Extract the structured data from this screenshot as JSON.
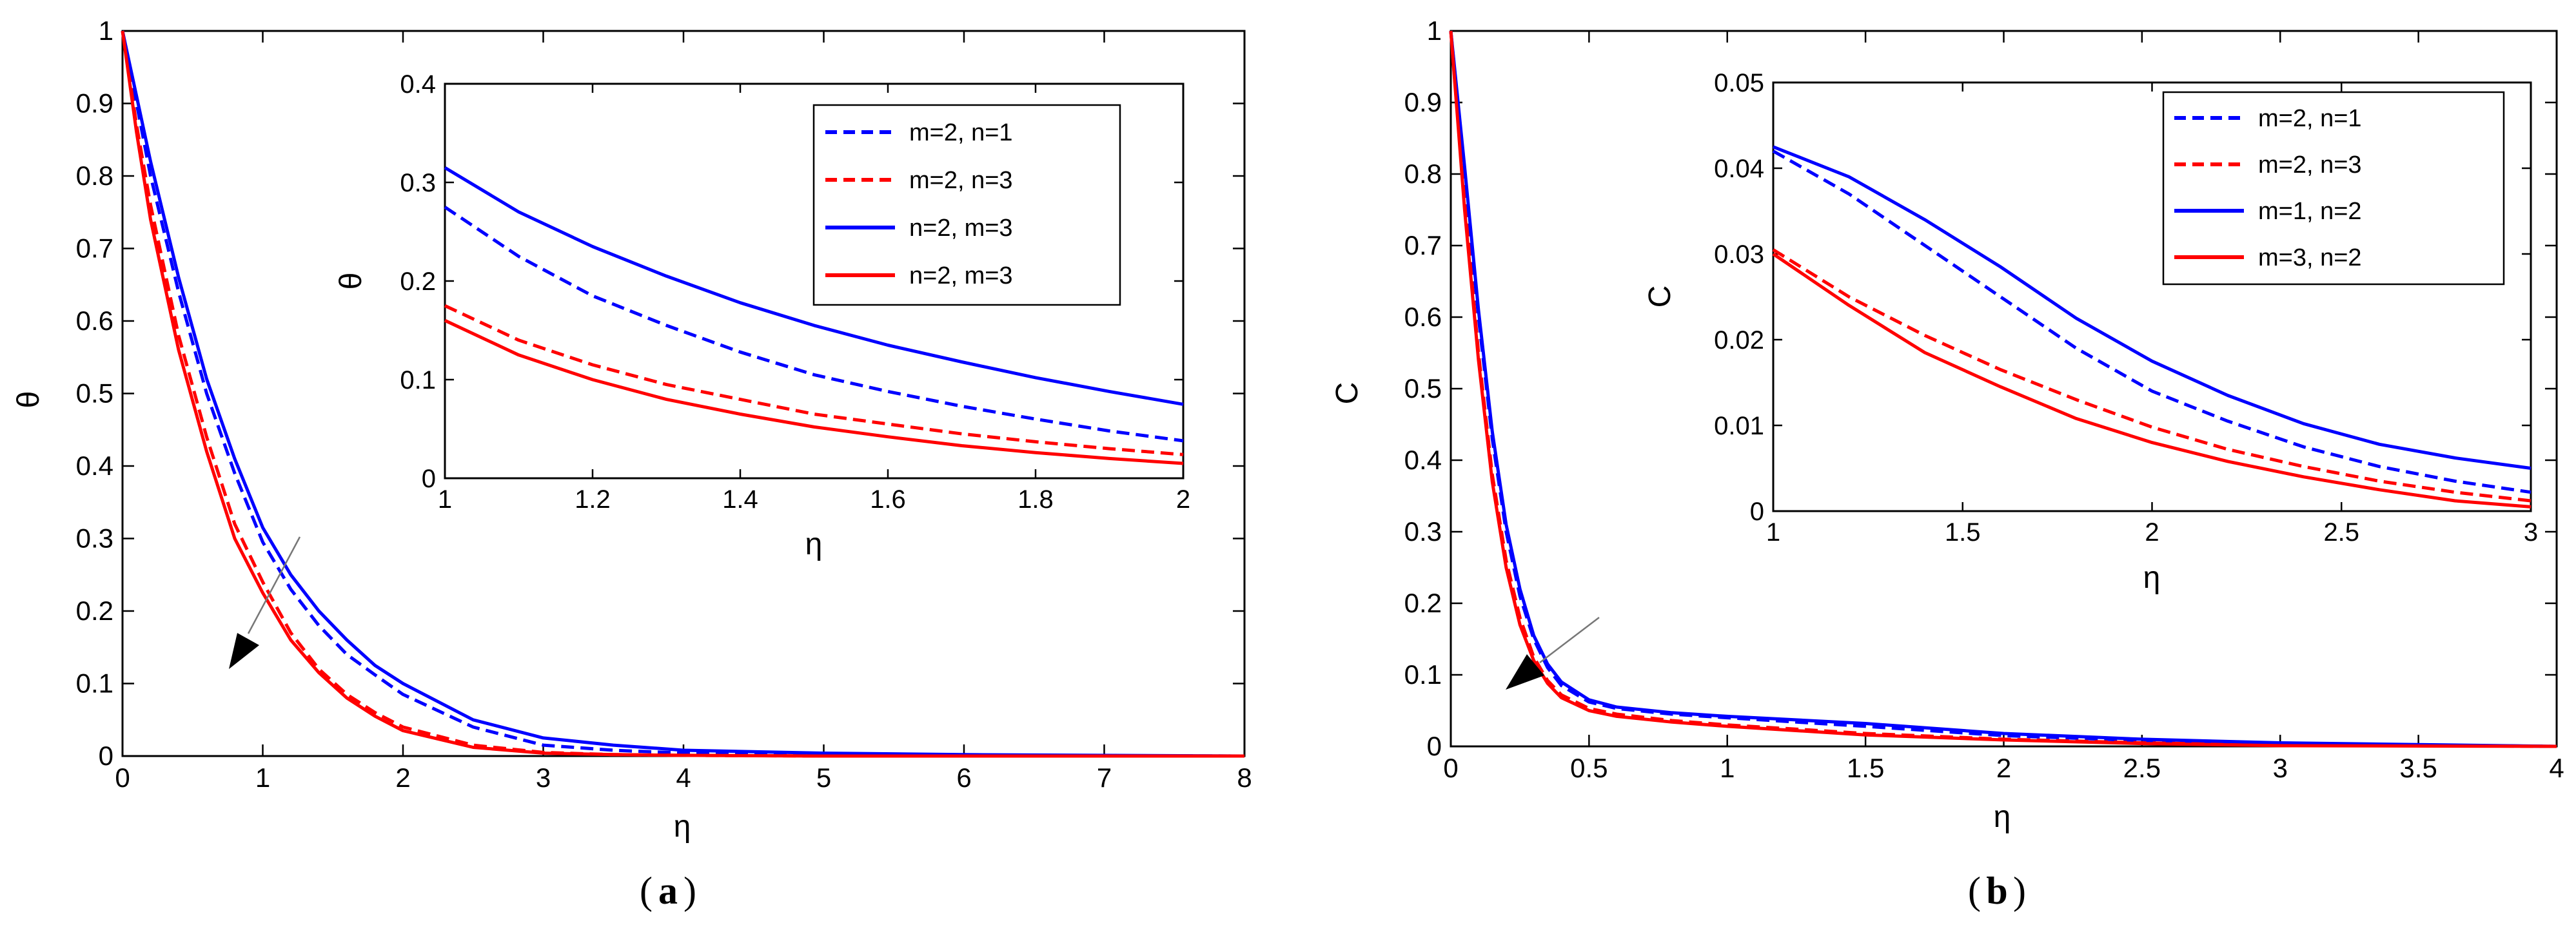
{
  "chart_data": [
    {
      "type": "line",
      "panel": "a",
      "caption_paren_open": "(",
      "caption_letter": "a",
      "caption_paren_close": ")",
      "xlabel": "η",
      "ylabel": "θ",
      "xlim": [
        0,
        8
      ],
      "ylim": [
        0,
        1
      ],
      "xticks": [
        0,
        1,
        2,
        3,
        4,
        5,
        6,
        7,
        8
      ],
      "yticks": [
        0,
        0.1,
        0.2,
        0.3,
        0.4,
        0.5,
        0.6,
        0.7,
        0.8,
        0.9,
        1
      ],
      "annotation": "arrow pointing toward lower curves",
      "series": [
        {
          "name": "m=2, n=1",
          "color": "#0000ff",
          "style": "dashed",
          "x": [
            0,
            0.1,
            0.2,
            0.4,
            0.6,
            0.8,
            1,
            1.2,
            1.4,
            1.6,
            1.8,
            2,
            2.5,
            3,
            3.5,
            4,
            5,
            6,
            8
          ],
          "y": [
            1,
            0.9,
            0.8,
            0.64,
            0.5,
            0.39,
            0.295,
            0.23,
            0.18,
            0.14,
            0.112,
            0.085,
            0.04,
            0.015,
            0.008,
            0.004,
            0.002,
            0.001,
            0
          ]
        },
        {
          "name": "m=2, n=3",
          "color": "#ff0000",
          "style": "dashed",
          "x": [
            0,
            0.1,
            0.2,
            0.4,
            0.6,
            0.8,
            1,
            1.2,
            1.4,
            1.6,
            1.8,
            2,
            2.5,
            3,
            3.5,
            4,
            5,
            6,
            8
          ],
          "y": [
            1,
            0.87,
            0.76,
            0.58,
            0.44,
            0.32,
            0.24,
            0.17,
            0.12,
            0.085,
            0.06,
            0.04,
            0.015,
            0.005,
            0.002,
            0.001,
            0,
            0,
            0
          ]
        },
        {
          "name": "n=2, m=3",
          "color": "#0000ff",
          "style": "solid",
          "x": [
            0,
            0.1,
            0.2,
            0.4,
            0.6,
            0.8,
            1,
            1.2,
            1.4,
            1.6,
            1.8,
            2,
            2.5,
            3,
            3.5,
            4,
            5,
            6,
            8
          ],
          "y": [
            1,
            0.91,
            0.82,
            0.66,
            0.52,
            0.41,
            0.315,
            0.25,
            0.2,
            0.16,
            0.125,
            0.1,
            0.05,
            0.025,
            0.015,
            0.008,
            0.004,
            0.002,
            0
          ]
        },
        {
          "name": "n=2, m=3",
          "color": "#ff0000",
          "style": "solid",
          "x": [
            0,
            0.1,
            0.2,
            0.4,
            0.6,
            0.8,
            1,
            1.2,
            1.4,
            1.6,
            1.8,
            2,
            2.5,
            3,
            3.5,
            4,
            5,
            6,
            8
          ],
          "y": [
            1,
            0.86,
            0.74,
            0.56,
            0.42,
            0.3,
            0.225,
            0.16,
            0.115,
            0.08,
            0.055,
            0.035,
            0.012,
            0.004,
            0.002,
            0.001,
            0,
            0,
            0
          ]
        }
      ],
      "inset": {
        "xlabel": "η",
        "ylabel": "θ",
        "xlim": [
          1,
          2
        ],
        "ylim": [
          0,
          0.4
        ],
        "xticks": [
          1,
          1.2,
          1.4,
          1.6,
          1.8,
          2
        ],
        "yticks": [
          0,
          0.1,
          0.2,
          0.3,
          0.4
        ],
        "legend_position": "top-right",
        "series": [
          {
            "name": "m=2, n=1",
            "color": "#0000ff",
            "style": "dashed",
            "x": [
              1,
              1.1,
              1.2,
              1.3,
              1.4,
              1.5,
              1.6,
              1.7,
              1.8,
              1.9,
              2
            ],
            "y": [
              0.275,
              0.225,
              0.185,
              0.155,
              0.128,
              0.105,
              0.088,
              0.073,
              0.06,
              0.048,
              0.038
            ]
          },
          {
            "name": "m=2, n=3",
            "color": "#ff0000",
            "style": "dashed",
            "x": [
              1,
              1.1,
              1.2,
              1.3,
              1.4,
              1.5,
              1.6,
              1.7,
              1.8,
              1.9,
              2
            ],
            "y": [
              0.175,
              0.14,
              0.115,
              0.095,
              0.08,
              0.065,
              0.055,
              0.045,
              0.037,
              0.03,
              0.024
            ]
          },
          {
            "name": "n=2, m=3",
            "color": "#0000ff",
            "style": "solid",
            "x": [
              1,
              1.1,
              1.2,
              1.3,
              1.4,
              1.5,
              1.6,
              1.7,
              1.8,
              1.9,
              2
            ],
            "y": [
              0.315,
              0.27,
              0.235,
              0.205,
              0.178,
              0.155,
              0.135,
              0.118,
              0.102,
              0.088,
              0.075
            ]
          },
          {
            "name": "n=2, m=3",
            "color": "#ff0000",
            "style": "solid",
            "x": [
              1,
              1.1,
              1.2,
              1.3,
              1.4,
              1.5,
              1.6,
              1.7,
              1.8,
              1.9,
              2
            ],
            "y": [
              0.16,
              0.125,
              0.1,
              0.08,
              0.065,
              0.052,
              0.042,
              0.033,
              0.026,
              0.02,
              0.015
            ]
          }
        ]
      }
    },
    {
      "type": "line",
      "panel": "b",
      "caption_paren_open": "(",
      "caption_letter": "b",
      "caption_paren_close": ")",
      "xlabel": "η",
      "ylabel": "C",
      "xlim": [
        0,
        4
      ],
      "ylim": [
        0,
        1
      ],
      "xticks": [
        0,
        0.5,
        1,
        1.5,
        2,
        2.5,
        3,
        3.5,
        4
      ],
      "yticks": [
        0,
        0.1,
        0.2,
        0.3,
        0.4,
        0.5,
        0.6,
        0.7,
        0.8,
        0.9,
        1
      ],
      "annotation": "arrow pointing toward lower curves",
      "series": [
        {
          "name": "m=2, n=1",
          "color": "#0000ff",
          "style": "dashed",
          "x": [
            0,
            0.05,
            0.1,
            0.15,
            0.2,
            0.25,
            0.3,
            0.35,
            0.4,
            0.5,
            0.6,
            0.8,
            1,
            1.5,
            2,
            2.5,
            3,
            4
          ],
          "y": [
            1,
            0.8,
            0.6,
            0.43,
            0.3,
            0.21,
            0.15,
            0.11,
            0.085,
            0.062,
            0.053,
            0.045,
            0.04,
            0.028,
            0.015,
            0.008,
            0.004,
            0
          ]
        },
        {
          "name": "m=2, n=3",
          "color": "#ff0000",
          "style": "dashed",
          "x": [
            0,
            0.05,
            0.1,
            0.15,
            0.2,
            0.25,
            0.3,
            0.35,
            0.4,
            0.5,
            0.6,
            0.8,
            1,
            1.5,
            2,
            2.5,
            3,
            4
          ],
          "y": [
            1,
            0.76,
            0.55,
            0.38,
            0.26,
            0.18,
            0.125,
            0.092,
            0.072,
            0.053,
            0.045,
            0.036,
            0.03,
            0.018,
            0.01,
            0.005,
            0.002,
            0
          ]
        },
        {
          "name": "m=1, n=2",
          "color": "#0000ff",
          "style": "solid",
          "x": [
            0,
            0.05,
            0.1,
            0.15,
            0.2,
            0.25,
            0.3,
            0.35,
            0.4,
            0.5,
            0.6,
            0.8,
            1,
            1.5,
            2,
            2.5,
            3,
            4
          ],
          "y": [
            1,
            0.81,
            0.61,
            0.44,
            0.31,
            0.22,
            0.155,
            0.115,
            0.09,
            0.065,
            0.055,
            0.047,
            0.042,
            0.032,
            0.018,
            0.01,
            0.005,
            0
          ]
        },
        {
          "name": "m=3, n=2",
          "color": "#ff0000",
          "style": "solid",
          "x": [
            0,
            0.05,
            0.1,
            0.15,
            0.2,
            0.25,
            0.3,
            0.35,
            0.4,
            0.5,
            0.6,
            0.8,
            1,
            1.5,
            2,
            2.5,
            3,
            4
          ],
          "y": [
            1,
            0.75,
            0.54,
            0.37,
            0.25,
            0.17,
            0.12,
            0.088,
            0.068,
            0.05,
            0.042,
            0.034,
            0.028,
            0.016,
            0.009,
            0.004,
            0.001,
            0
          ]
        }
      ],
      "inset": {
        "xlabel": "η",
        "ylabel": "C",
        "xlim": [
          1,
          3
        ],
        "ylim": [
          0,
          0.05
        ],
        "xticks": [
          1,
          1.5,
          2,
          2.5,
          3
        ],
        "yticks": [
          0,
          0.01,
          0.02,
          0.03,
          0.04,
          0.05
        ],
        "legend_position": "top-right",
        "series": [
          {
            "name": "m=2, n=1",
            "color": "#0000ff",
            "style": "dashed",
            "x": [
              1,
              1.2,
              1.4,
              1.6,
              1.8,
              2,
              2.2,
              2.4,
              2.6,
              2.8,
              3
            ],
            "y": [
              0.042,
              0.037,
              0.031,
              0.025,
              0.019,
              0.014,
              0.0105,
              0.0075,
              0.0052,
              0.0035,
              0.0022
            ]
          },
          {
            "name": "m=2, n=3",
            "color": "#ff0000",
            "style": "dashed",
            "x": [
              1,
              1.2,
              1.4,
              1.6,
              1.8,
              2,
              2.2,
              2.4,
              2.6,
              2.8,
              3
            ],
            "y": [
              0.0305,
              0.025,
              0.0205,
              0.0165,
              0.013,
              0.0098,
              0.0072,
              0.0052,
              0.0035,
              0.0022,
              0.0012
            ]
          },
          {
            "name": "m=1, n=2",
            "color": "#0000ff",
            "style": "solid",
            "x": [
              1,
              1.2,
              1.4,
              1.6,
              1.8,
              2,
              2.2,
              2.4,
              2.6,
              2.8,
              3
            ],
            "y": [
              0.0425,
              0.039,
              0.034,
              0.0285,
              0.0225,
              0.0175,
              0.0135,
              0.0102,
              0.0078,
              0.0062,
              0.005
            ]
          },
          {
            "name": "m=3, n=2",
            "color": "#ff0000",
            "style": "solid",
            "x": [
              1,
              1.2,
              1.4,
              1.6,
              1.8,
              2,
              2.2,
              2.4,
              2.6,
              2.8,
              3
            ],
            "y": [
              0.03,
              0.024,
              0.0185,
              0.0145,
              0.0108,
              0.008,
              0.0058,
              0.004,
              0.0025,
              0.0012,
              0.0005
            ]
          }
        ]
      }
    }
  ]
}
